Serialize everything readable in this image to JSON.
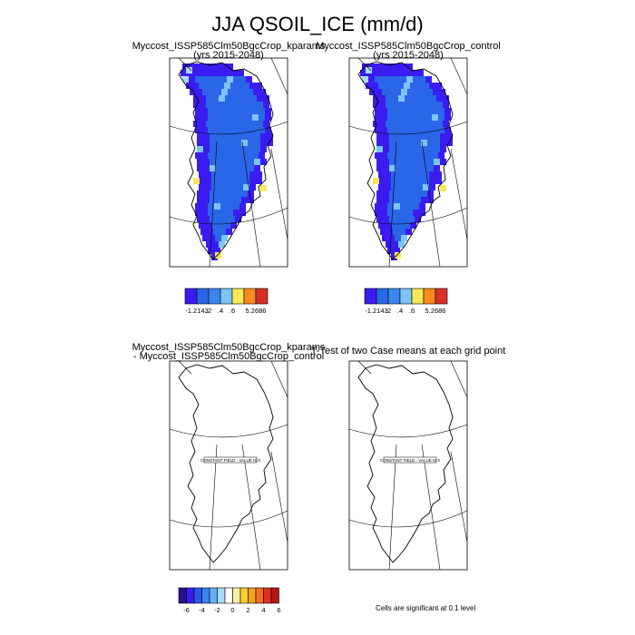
{
  "title": "JJA QSOIL_ICE (mm/d)",
  "panels": [
    {
      "case_name": "Myccost_ISSP585Clm50BgcCrop_kparams",
      "years": "(yrs 2015-2048)",
      "colorbar": {
        "colors": [
          "#3a1cf0",
          "#2a66e8",
          "#3b86f0",
          "#7cc4f8",
          "#f8e858",
          "#f88a20",
          "#d83028"
        ],
        "labels": [
          "-1.2143",
          ".2",
          ".4",
          ".6",
          "5.2686"
        ]
      }
    },
    {
      "case_name": "Myccost_ISSP585Clm50BgcCrop_control",
      "years": "(yrs 2015-2048)",
      "colorbar": {
        "colors": [
          "#3a1cf0",
          "#2a66e8",
          "#3b86f0",
          "#7cc4f8",
          "#f8e858",
          "#f88a20",
          "#d83028"
        ],
        "labels": [
          "-1.2143",
          ".2",
          ".4",
          ".6",
          "5.2686"
        ]
      }
    },
    {
      "line1": "Myccost_ISSP585Clm50BgcCrop_kparams",
      "line2": "- Myccost_ISSP585Clm50BgcCrop_control",
      "map_label": "CONSTANT FIELD - VALUE IS 0"
    },
    {
      "title": "T-Test of two Case means at each grid point",
      "map_label": "CONSTANT FIELD - VALUE IS 0",
      "note": "Cells are significant at 0.1 level"
    }
  ],
  "diff_colorbar": {
    "colors": [
      "#2a1090",
      "#3a1cf0",
      "#2a58e8",
      "#3b86f0",
      "#60aef8",
      "#a8dcf8",
      "#ffffff",
      "#f8f0a0",
      "#f8d030",
      "#f8a020",
      "#f07020",
      "#e03020",
      "#b01818"
    ],
    "labels": [
      "-6",
      "-4",
      "-2",
      "0",
      "2",
      "4",
      "6"
    ]
  }
}
